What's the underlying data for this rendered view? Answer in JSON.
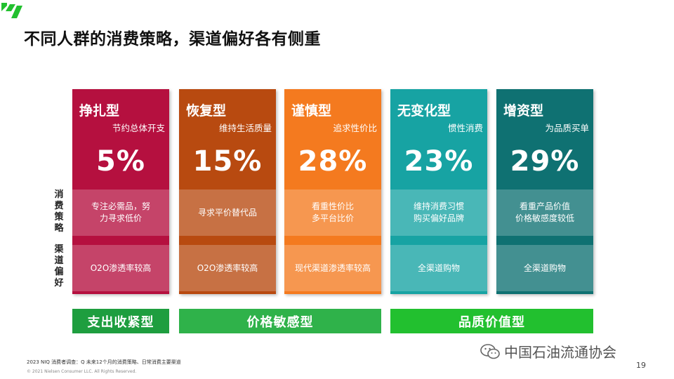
{
  "title": "不同人群的消费策略，渠道偏好各有侧重",
  "side_labels": {
    "strategy": "消费策略",
    "channel": "渠道偏好"
  },
  "cards": [
    {
      "name": "挣扎型",
      "sub": "节约总体开支",
      "pct": "5%",
      "strategy": "专注必需品，努\n力寻求低价",
      "channel": "O2O渗透率较高",
      "color": "#b5103f"
    },
    {
      "name": "恢复型",
      "sub": "维持生活质量",
      "pct": "15%",
      "strategy": "寻求平价替代品",
      "channel": "O2O渗透率较高",
      "color": "#b84a10"
    },
    {
      "name": "谨慎型",
      "sub": "追求性价比",
      "pct": "28%",
      "strategy": "看重性价比\n多平台比价",
      "channel": "现代渠道渗透率较高",
      "color": "#f47a1f"
    },
    {
      "name": "无变化型",
      "sub": "惯性消费",
      "pct": "23%",
      "strategy": "维持消费习惯\n购买偏好品牌",
      "channel": "全渠道购物",
      "color": "#17a3a3"
    },
    {
      "name": "增资型",
      "sub": "为品质买单",
      "pct": "29%",
      "strategy": "看重产品价值\n价格敏感度较低",
      "channel": "全渠道购物",
      "color": "#0f7172"
    }
  ],
  "groups": [
    {
      "label": "支出收紧型",
      "color": "#1e9e3f"
    },
    {
      "label": "价格敏感型",
      "color": "#2fb24a"
    },
    {
      "label": "品质价值型",
      "color": "#22c02f"
    }
  ],
  "footnote": "2023 NIQ 消费者调查：Q 未来12个月的消费策略、日常消费主要渠道",
  "copyright": "© 2021 Nielsen Consumer LLC. All Rights Reserved.",
  "watermark": "中国石油流通协会",
  "page_number": "19",
  "colors": {
    "logo": "#22c02f",
    "title": "#111111",
    "background_triangle": "#eeeeee"
  }
}
